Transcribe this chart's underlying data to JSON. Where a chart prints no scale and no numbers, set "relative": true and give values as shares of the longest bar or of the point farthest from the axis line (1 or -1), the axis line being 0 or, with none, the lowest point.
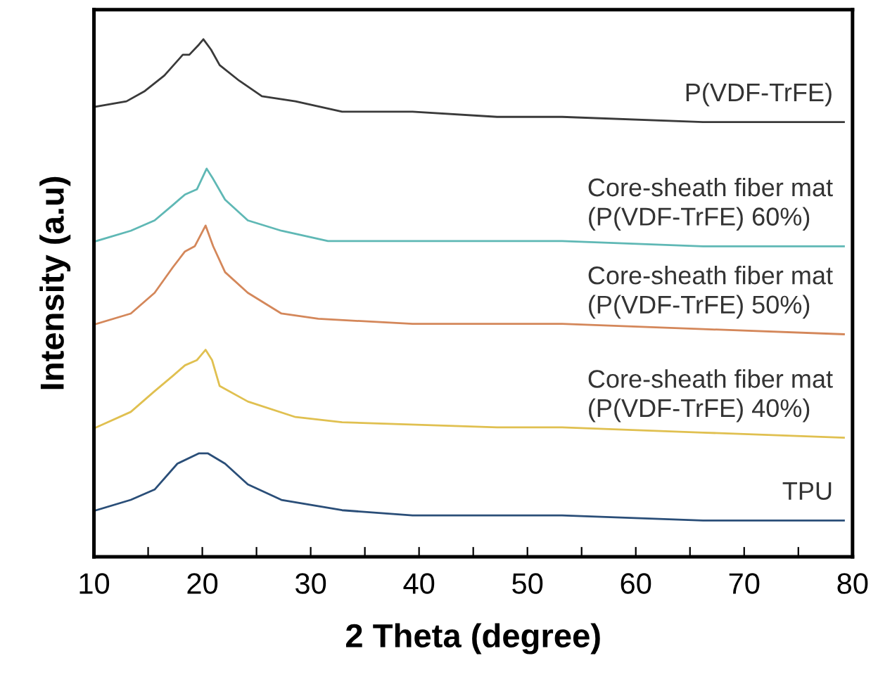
{
  "chart_data": {
    "type": "line",
    "relative": true,
    "xlabel": "2 Theta (degree)",
    "ylabel": "Intensity (a.u)",
    "xlim": [
      10,
      80
    ],
    "xticks": [
      10,
      {
        "value": 15,
        "label": null
      },
      20,
      {
        "value": 25,
        "label": null
      },
      30,
      {
        "value": 35,
        "label": null
      },
      40,
      {
        "value": 45,
        "label": null
      },
      50,
      {
        "value": 55,
        "label": null
      },
      60,
      {
        "value": 65,
        "label": null
      },
      70,
      {
        "value": 75,
        "label": null
      },
      80
    ],
    "grid": false,
    "legend": false,
    "tick_labels": "x",
    "marker": "none",
    "line_style": "solid",
    "series": [
      {
        "name": "P(VDF-TrFE)",
        "color": "#3a3a3a",
        "x": [
          10.2,
          13.0,
          14.7,
          16.5,
          18.2,
          18.8,
          19.7,
          20.1,
          20.8,
          21.6,
          23.4,
          25.5,
          28.6,
          32.9,
          39.4,
          47.2,
          53.2,
          66.2,
          79.2
        ],
        "values": [
          0.87,
          0.88,
          0.9,
          0.93,
          0.97,
          0.97,
          0.99,
          1.0,
          0.98,
          0.95,
          0.92,
          0.89,
          0.88,
          0.86,
          0.86,
          0.85,
          0.85,
          0.84,
          0.84
        ]
      },
      {
        "name": "Core-sheath fiber mat\n(P(VDF-TrFE) 60%)",
        "color": "#5fb8b5",
        "x": [
          10.2,
          13.4,
          15.6,
          17.3,
          18.4,
          19.5,
          20.4,
          21.0,
          22.1,
          24.2,
          27.3,
          31.6,
          39.4,
          47.2,
          53.2,
          66.2,
          79.2
        ],
        "values": [
          0.61,
          0.63,
          0.65,
          0.68,
          0.7,
          0.71,
          0.75,
          0.73,
          0.69,
          0.65,
          0.63,
          0.61,
          0.61,
          0.61,
          0.61,
          0.6,
          0.6
        ]
      },
      {
        "name": "Core-sheath fiber mat\n(P(VDF-TrFE) 50%)",
        "color": "#d4875a",
        "x": [
          10.2,
          13.4,
          15.6,
          17.3,
          18.4,
          19.3,
          20.3,
          21.0,
          22.1,
          24.2,
          27.3,
          30.7,
          39.4,
          47.2,
          53.2,
          66.2,
          79.2
        ],
        "values": [
          0.45,
          0.47,
          0.51,
          0.56,
          0.59,
          0.6,
          0.64,
          0.6,
          0.55,
          0.51,
          0.47,
          0.46,
          0.45,
          0.45,
          0.45,
          0.44,
          0.43
        ]
      },
      {
        "name": "Core-sheath fiber mat\n(P(VDF-TrFE) 40%)",
        "color": "#e0c050",
        "x": [
          10.2,
          13.4,
          15.6,
          17.3,
          18.4,
          19.5,
          20.3,
          20.9,
          21.6,
          24.2,
          28.6,
          32.9,
          47.2,
          53.2,
          66.2,
          79.2
        ],
        "values": [
          0.25,
          0.28,
          0.32,
          0.35,
          0.37,
          0.38,
          0.4,
          0.38,
          0.33,
          0.3,
          0.27,
          0.26,
          0.25,
          0.25,
          0.24,
          0.23
        ]
      },
      {
        "name": "TPU",
        "color": "#2a4e78",
        "x": [
          10.2,
          13.4,
          15.6,
          17.7,
          19.7,
          20.5,
          22.1,
          24.2,
          27.3,
          32.9,
          39.4,
          47.2,
          53.2,
          66.2,
          79.2
        ],
        "values": [
          0.09,
          0.11,
          0.13,
          0.18,
          0.2,
          0.2,
          0.18,
          0.14,
          0.11,
          0.09,
          0.08,
          0.08,
          0.08,
          0.07,
          0.07
        ]
      }
    ]
  }
}
